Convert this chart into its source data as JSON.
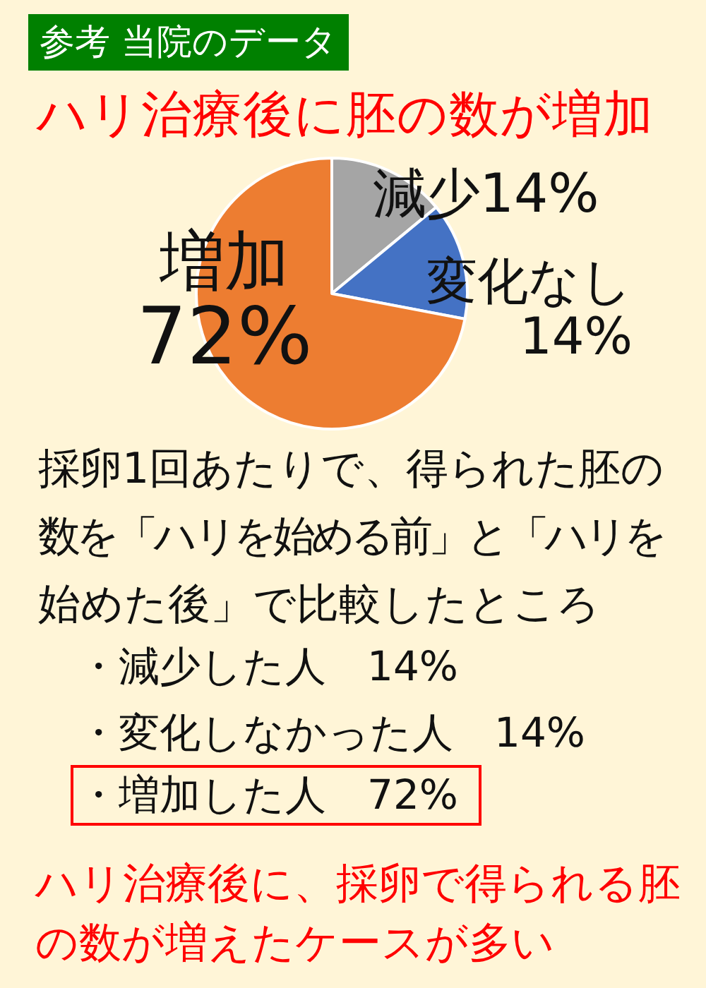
{
  "chart_data": {
    "type": "pie",
    "title": "ハリ治療後に胚の数が増加",
    "subtitle": "参考 当院のデータ",
    "categories": [
      "減少",
      "変化なし",
      "増加"
    ],
    "values": [
      14,
      14,
      72
    ],
    "colors": [
      "#a5a5a5",
      "#4472c4",
      "#ed7d31"
    ],
    "value_labels": [
      "14%",
      "14%",
      "72%"
    ],
    "annotations": [
      "採卵1回あたりで、得られた胚の",
      "数を「ハリを始める前」と「ハリを",
      "始めた後」で比較したところ",
      "・減少した人　14%",
      "・変化しなかった人　14%",
      "・増加した人　72%",
      "ハリ治療後に、採卵で得られる胚の数が増えたケースが多い"
    ]
  }
}
